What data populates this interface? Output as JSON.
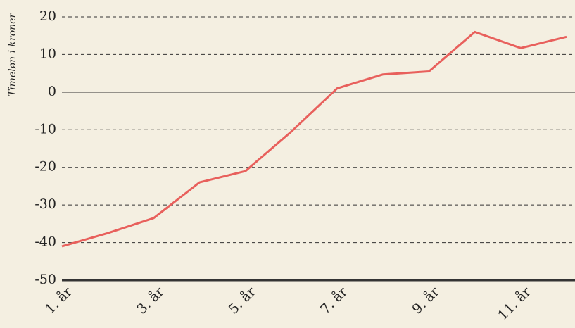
{
  "chart_data": {
    "type": "line",
    "y_label": "Timeløn i kroner",
    "categories": [
      "1. år",
      null,
      "3. år",
      null,
      "5. år",
      null,
      "7. år",
      null,
      "9. år",
      null,
      "11. år",
      null
    ],
    "series": [
      {
        "name": "Timeløn",
        "color": "#e8605c",
        "values": [
          -41,
          -37.5,
          -33.5,
          -24,
          -21,
          -10.5,
          1,
          4.7,
          5.5,
          16,
          11.7,
          14.7
        ]
      }
    ],
    "ylim": [
      -50,
      20
    ],
    "yticks": [
      -50,
      -40,
      -30,
      -20,
      -10,
      0,
      10,
      20
    ],
    "grid": true
  }
}
